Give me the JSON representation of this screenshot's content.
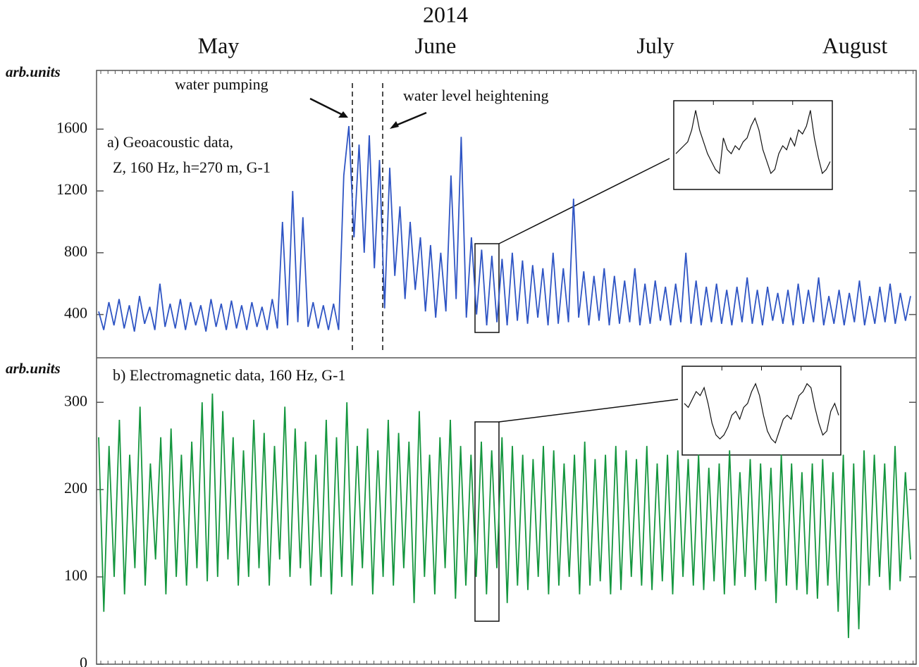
{
  "chart_data": [
    {
      "type": "line",
      "title": "2014",
      "x_labels": [
        "May",
        "June",
        "July",
        "August"
      ],
      "y_label": "arb.units",
      "annotations": [
        "water pumping",
        "water level heightening",
        "a) Geoacoustic data,",
        "Z, 160 Hz, h=270 m,  G-1"
      ],
      "ylim": [
        120,
        1980
      ],
      "yticks": [
        400,
        800,
        1200,
        1600
      ],
      "color": "#2f55c4",
      "values": [
        420,
        300,
        480,
        330,
        500,
        310,
        460,
        290,
        520,
        340,
        450,
        300,
        600,
        320,
        470,
        310,
        500,
        300,
        480,
        330,
        460,
        290,
        500,
        320,
        470,
        300,
        490,
        310,
        460,
        300,
        480,
        320,
        450,
        300,
        500,
        310,
        1000,
        330,
        1200,
        350,
        1030,
        320,
        480,
        310,
        460,
        300,
        470,
        300,
        1300,
        1620,
        900,
        1500,
        800,
        1560,
        700,
        1400,
        440,
        1350,
        650,
        1100,
        500,
        1000,
        560,
        900,
        420,
        850,
        380,
        800,
        420,
        1300,
        500,
        1550,
        380,
        900,
        400,
        820,
        330,
        780,
        350,
        760,
        330,
        800,
        360,
        750,
        340,
        720,
        380,
        700,
        330,
        800,
        340,
        700,
        350,
        1150,
        380,
        680,
        330,
        650,
        360,
        700,
        330,
        650,
        340,
        620,
        350,
        700,
        330,
        600,
        340,
        620,
        360,
        580,
        330,
        600,
        350,
        800,
        340,
        620,
        330,
        580,
        350,
        600,
        340,
        560,
        330,
        580,
        350,
        640,
        340,
        560,
        330,
        580,
        360,
        540,
        340,
        560,
        330,
        600,
        340,
        560,
        350,
        640,
        330,
        520,
        340,
        560,
        330,
        540,
        350,
        620,
        330,
        520,
        340,
        580,
        350,
        600,
        340,
        540,
        360,
        520
      ],
      "inset": {
        "ylim": [
          0,
          100
        ],
        "values": [
          40,
          45,
          50,
          55,
          70,
          95,
          70,
          55,
          40,
          30,
          20,
          15,
          60,
          45,
          40,
          50,
          45,
          55,
          60,
          75,
          85,
          70,
          45,
          30,
          15,
          20,
          40,
          50,
          45,
          60,
          50,
          70,
          65,
          75,
          95,
          60,
          35,
          15,
          20,
          30
        ]
      }
    },
    {
      "type": "line",
      "y_label": "arb.units",
      "annotations": [
        "b) Electromagnetic data, 160 Hz,  G-1"
      ],
      "ylim": [
        0,
        351
      ],
      "yticks": [
        0,
        100,
        200,
        300
      ],
      "color": "#14963e",
      "values": [
        260,
        60,
        250,
        100,
        280,
        80,
        240,
        110,
        295,
        90,
        230,
        120,
        260,
        80,
        270,
        100,
        240,
        90,
        255,
        110,
        300,
        95,
        310,
        100,
        290,
        120,
        260,
        90,
        245,
        100,
        280,
        110,
        265,
        90,
        250,
        120,
        295,
        100,
        270,
        110,
        255,
        90,
        240,
        100,
        280,
        80,
        260,
        100,
        300,
        90,
        250,
        110,
        270,
        80,
        245,
        100,
        280,
        90,
        265,
        110,
        255,
        70,
        290,
        100,
        240,
        80,
        260,
        110,
        280,
        75,
        250,
        90,
        240,
        100,
        255,
        80,
        245,
        110,
        260,
        70,
        250,
        90,
        240,
        85,
        235,
        100,
        250,
        80,
        245,
        90,
        230,
        100,
        240,
        80,
        255,
        90,
        235,
        95,
        240,
        80,
        250,
        85,
        245,
        100,
        235,
        90,
        250,
        85,
        230,
        95,
        240,
        80,
        245,
        100,
        235,
        90,
        240,
        85,
        225,
        95,
        230,
        80,
        245,
        90,
        220,
        100,
        235,
        85,
        230,
        95,
        225,
        70,
        240,
        90,
        230,
        85,
        220,
        80,
        230,
        75,
        235,
        90,
        220,
        60,
        240,
        30,
        230,
        40,
        245,
        90,
        240,
        100,
        230,
        85,
        250,
        95,
        220,
        120
      ],
      "inset": {
        "ylim": [
          0,
          100
        ],
        "values": [
          60,
          55,
          65,
          75,
          70,
          80,
          60,
          35,
          20,
          15,
          20,
          30,
          45,
          50,
          40,
          55,
          60,
          75,
          85,
          70,
          45,
          25,
          15,
          10,
          25,
          40,
          45,
          40,
          55,
          70,
          75,
          85,
          80,
          55,
          35,
          20,
          25,
          50,
          60,
          45
        ]
      }
    }
  ]
}
